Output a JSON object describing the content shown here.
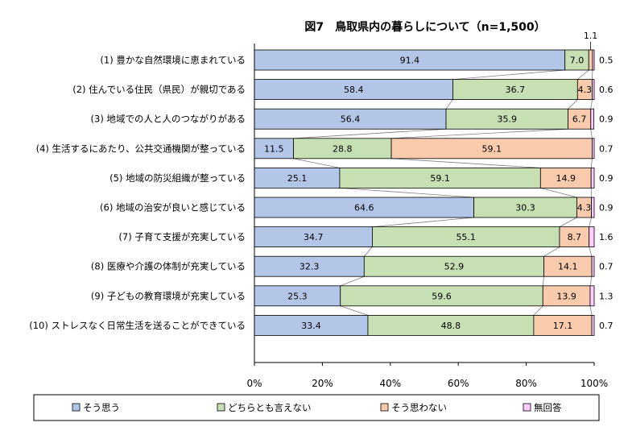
{
  "chart_data": {
    "type": "bar",
    "orientation": "horizontal-stacked-100",
    "title": "図7　鳥取県内の暮らしについて（n=1,500）",
    "categories": [
      "(1) 豊かな自然環境に恵まれている",
      "(2) 住んでいる住民（県民）が親切である",
      "(3) 地域での人と人のつながりがある",
      "(4) 生活するにあたり、公共交通機関が整っている",
      "(5) 地域の防災組織が整っている",
      "(6) 地域の治安が良いと感じている",
      "(7) 子育て支援が充実している",
      "(8) 医療や介護の体制が充実している",
      "(9) 子どもの教育環境が充実している",
      "(10) ストレスなく日常生活を送ることができている"
    ],
    "series": [
      {
        "name": "そう思う",
        "color": "#b4c6e7",
        "values": [
          91.4,
          58.4,
          56.4,
          11.5,
          25.1,
          64.6,
          34.7,
          32.3,
          25.3,
          33.4
        ]
      },
      {
        "name": "どちらとも言えない",
        "color": "#c6e0b4",
        "values": [
          7.0,
          36.7,
          35.9,
          28.8,
          59.1,
          30.3,
          55.1,
          52.9,
          59.6,
          48.8
        ]
      },
      {
        "name": "そう思わない",
        "color": "#f8cbad",
        "values": [
          1.1,
          4.3,
          6.7,
          59.1,
          14.9,
          4.3,
          8.7,
          14.1,
          13.9,
          17.1
        ]
      },
      {
        "name": "無回答",
        "color": "#ffccff",
        "values": [
          0.5,
          0.6,
          0.9,
          0.7,
          0.9,
          0.9,
          1.6,
          0.7,
          1.3,
          0.7
        ]
      }
    ],
    "xlim": [
      0,
      100
    ],
    "xticks": [
      "0%",
      "20%",
      "40%",
      "60%",
      "80%",
      "100%"
    ],
    "legend_position": "bottom",
    "grid": false,
    "series_lines": true
  }
}
